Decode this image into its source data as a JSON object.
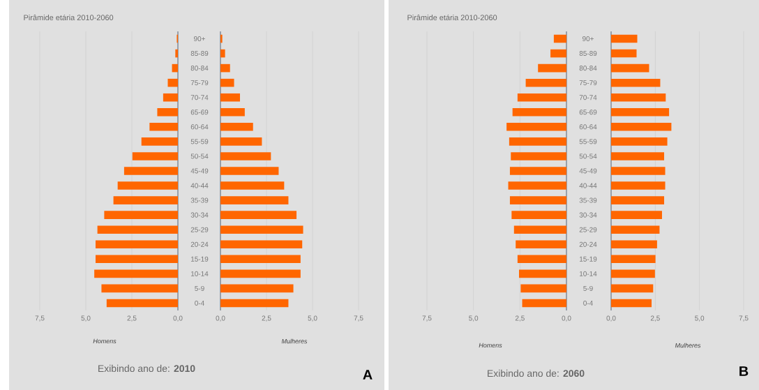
{
  "chart_data": [
    {
      "type": "bar",
      "orientation": "horizontal",
      "title": "Pirâmide etária 2010-2060",
      "xlabel": "Homens",
      "annotations": [
        "Exibindo ano de: **2010**",
        "A"
      ],
      "grid": "x",
      "color": "#ff6600",
      "categories": [
        "90+",
        "85-89",
        "80-84",
        "75-79",
        "70-74",
        "65-69",
        "60-64",
        "55-59",
        "50-54",
        "45-49",
        "40-44",
        "35-39",
        "30-34",
        "25-29",
        "20-24",
        "15-19",
        "10-14",
        "5-9",
        "0-4"
      ],
      "values": [
        0.06,
        0.14,
        0.32,
        0.55,
        0.8,
        1.12,
        1.54,
        1.98,
        2.47,
        2.92,
        3.27,
        3.5,
        4.0,
        4.37,
        4.47,
        4.47,
        4.54,
        4.15,
        3.87
      ],
      "xlim": [
        7.5,
        0
      ],
      "xticks": [
        {
          "value": 7.5,
          "label": "7,5"
        },
        {
          "value": 5,
          "label": "5,0"
        },
        {
          "value": 2.5,
          "label": "2,5"
        },
        {
          "value": 0,
          "label": "0,0"
        }
      ]
    },
    {
      "type": "bar",
      "orientation": "horizontal",
      "xlabel": "Mulheres",
      "grid": "x",
      "color": "#ff6600",
      "categories": [
        null,
        null,
        null,
        null,
        null,
        null,
        null,
        null,
        null,
        null,
        null,
        null,
        null,
        null,
        null,
        null,
        null,
        null,
        null
      ],
      "values": [
        0.1,
        0.25,
        0.52,
        0.74,
        1.06,
        1.32,
        1.77,
        2.25,
        2.74,
        3.16,
        3.46,
        3.69,
        4.13,
        4.49,
        4.44,
        4.35,
        4.35,
        3.96,
        3.69
      ],
      "xlim": [
        0,
        7.5
      ],
      "xticks": [
        {
          "value": 0,
          "label": "0,0"
        },
        {
          "value": 2.5,
          "label": "2,5"
        },
        {
          "value": 5,
          "label": "5,0"
        },
        {
          "value": 7.5,
          "label": "7,5"
        }
      ]
    },
    {
      "type": "bar",
      "orientation": "horizontal",
      "title": "Pirâmide etária 2010-2060",
      "xlabel": "Homens",
      "annotations": [
        "Exibindo ano de: **2060**",
        "B"
      ],
      "grid": "x",
      "color": "#ff6600",
      "categories": [
        "90+",
        "85-89",
        "80-84",
        "75-79",
        "70-74",
        "65-69",
        "60-64",
        "55-59",
        "50-54",
        "45-49",
        "40-44",
        "35-39",
        "30-34",
        "25-29",
        "20-24",
        "15-19",
        "10-14",
        "5-9",
        "0-4"
      ],
      "values": [
        0.68,
        0.86,
        1.53,
        2.19,
        2.63,
        2.9,
        3.22,
        3.08,
        2.99,
        3.04,
        3.13,
        3.04,
        2.95,
        2.82,
        2.73,
        2.63,
        2.55,
        2.46,
        2.38
      ],
      "xlim": [
        7.5,
        0
      ],
      "xticks": [
        {
          "value": 7.5,
          "label": "7,5"
        },
        {
          "value": 5,
          "label": "5,0"
        },
        {
          "value": 2.5,
          "label": "2,5"
        },
        {
          "value": 0,
          "label": "0,0"
        }
      ]
    },
    {
      "type": "bar",
      "orientation": "horizontal",
      "xlabel": "Mulheres",
      "grid": "x",
      "color": "#ff6600",
      "categories": [
        null,
        null,
        null,
        null,
        null,
        null,
        null,
        null,
        null,
        null,
        null,
        null,
        null,
        null,
        null,
        null,
        null,
        null,
        null
      ],
      "values": [
        1.48,
        1.44,
        2.15,
        2.78,
        3.09,
        3.28,
        3.41,
        3.18,
        3.0,
        3.06,
        3.06,
        3.0,
        2.88,
        2.74,
        2.6,
        2.51,
        2.48,
        2.38,
        2.29
      ],
      "xlim": [
        0,
        7.5
      ],
      "xticks": [
        {
          "value": 0,
          "label": "0,0"
        },
        {
          "value": 2.5,
          "label": "2,5"
        },
        {
          "value": 5,
          "label": "5,0"
        },
        {
          "value": 7.5,
          "label": "7,5"
        }
      ]
    }
  ]
}
